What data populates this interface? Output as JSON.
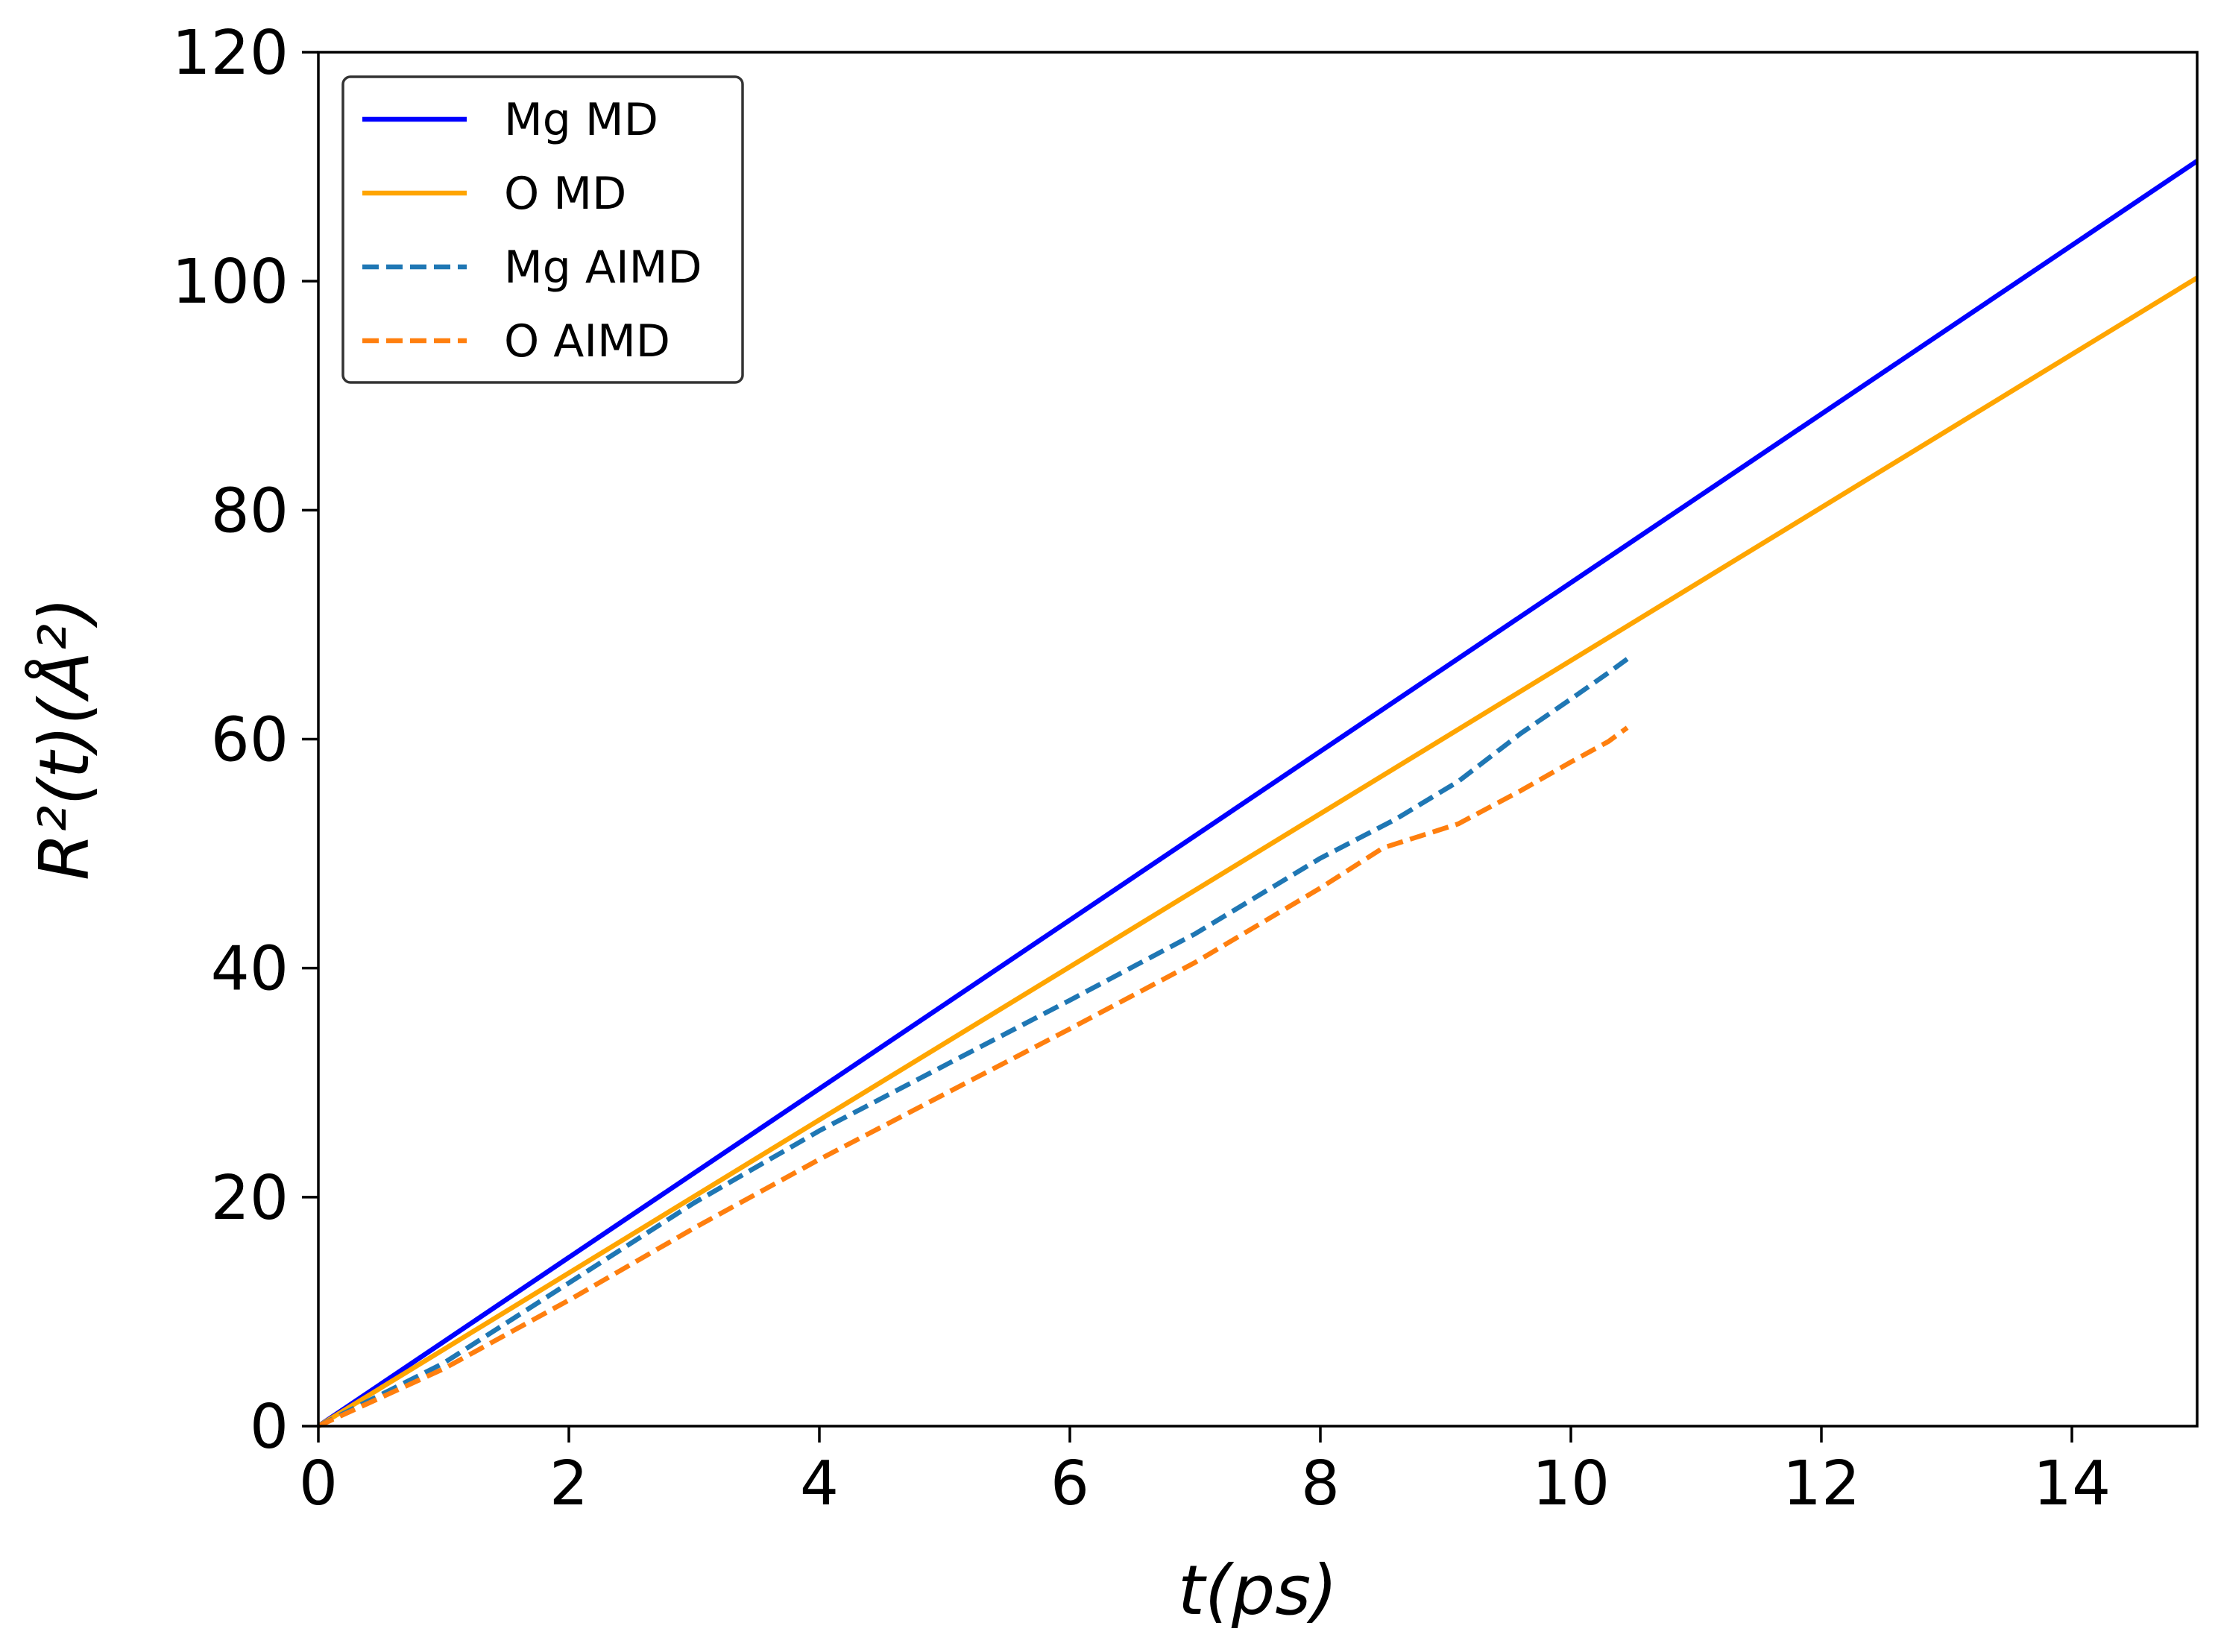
{
  "chart_data": {
    "type": "line",
    "title": "",
    "xlabel": "t(ps)",
    "ylabel": "R²(t)(Å²)",
    "xlim": [
      0,
      15
    ],
    "ylim": [
      0,
      120
    ],
    "xticks": [
      0,
      2,
      4,
      6,
      8,
      10,
      12,
      14
    ],
    "yticks": [
      0,
      20,
      40,
      60,
      80,
      100,
      120
    ],
    "grid": false,
    "legend_position": "top-left",
    "series": [
      {
        "name": "Mg MD",
        "color": "#0000ff",
        "style": "solid",
        "x": [
          0,
          15
        ],
        "y": [
          0,
          110.5
        ]
      },
      {
        "name": "O MD",
        "color": "#ffa500",
        "style": "solid",
        "x": [
          0,
          15
        ],
        "y": [
          0,
          100.3
        ]
      },
      {
        "name": "Mg AIMD",
        "color": "#1f77b4",
        "style": "dashed",
        "x": [
          0,
          1,
          2,
          3,
          4,
          5,
          6,
          7,
          8,
          8.6,
          9.1,
          9.6,
          10,
          10.3,
          10.45
        ],
        "y": [
          0,
          5.5,
          12.5,
          19.5,
          25.8,
          31.5,
          37.2,
          43.0,
          49.6,
          53.0,
          56.3,
          60.5,
          63.5,
          65.8,
          67.0
        ]
      },
      {
        "name": "O AIMD",
        "color": "#ff7f0e",
        "style": "dashed",
        "x": [
          0,
          1,
          2,
          3,
          4,
          5,
          6,
          7,
          8,
          8.5,
          9.1,
          9.6,
          10,
          10.3,
          10.45
        ],
        "y": [
          0,
          5.0,
          11.0,
          17.3,
          23.3,
          29.0,
          34.7,
          40.5,
          47.0,
          50.5,
          52.6,
          55.5,
          58.0,
          59.8,
          61.0
        ]
      }
    ]
  }
}
